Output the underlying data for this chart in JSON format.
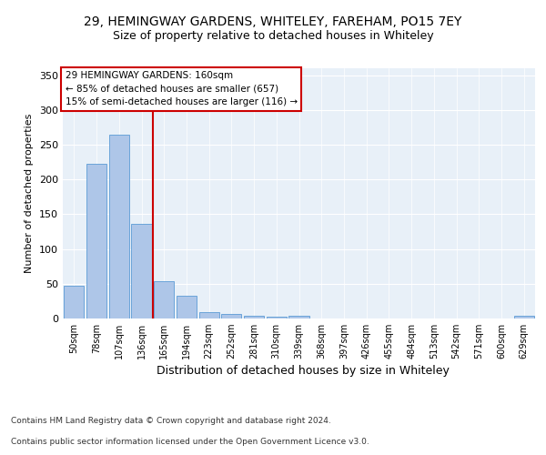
{
  "title1": "29, HEMINGWAY GARDENS, WHITELEY, FAREHAM, PO15 7EY",
  "title2": "Size of property relative to detached houses in Whiteley",
  "xlabel": "Distribution of detached houses by size in Whiteley",
  "ylabel": "Number of detached properties",
  "bar_labels": [
    "50sqm",
    "78sqm",
    "107sqm",
    "136sqm",
    "165sqm",
    "194sqm",
    "223sqm",
    "252sqm",
    "281sqm",
    "310sqm",
    "339sqm",
    "368sqm",
    "397sqm",
    "426sqm",
    "455sqm",
    "484sqm",
    "513sqm",
    "542sqm",
    "571sqm",
    "600sqm",
    "629sqm"
  ],
  "bar_values": [
    47,
    223,
    265,
    136,
    54,
    33,
    9,
    7,
    4,
    3,
    4,
    0,
    0,
    0,
    0,
    0,
    0,
    0,
    0,
    0,
    4
  ],
  "bar_color": "#aec6e8",
  "bar_edgecolor": "#5b9bd5",
  "vline_color": "#cc0000",
  "annotation_text": "29 HEMINGWAY GARDENS: 160sqm\n← 85% of detached houses are smaller (657)\n15% of semi-detached houses are larger (116) →",
  "annotation_box_color": "#ffffff",
  "annotation_box_edgecolor": "#cc0000",
  "ylim": [
    0,
    360
  ],
  "yticks": [
    0,
    50,
    100,
    150,
    200,
    250,
    300,
    350
  ],
  "background_color": "#e8f0f8",
  "grid_color": "#ffffff",
  "footer_line1": "Contains HM Land Registry data © Crown copyright and database right 2024.",
  "footer_line2": "Contains public sector information licensed under the Open Government Licence v3.0.",
  "title1_fontsize": 10,
  "title2_fontsize": 9,
  "ylabel_fontsize": 8,
  "xlabel_fontsize": 9,
  "tick_fontsize": 7,
  "annotation_fontsize": 7.5,
  "footer_fontsize": 6.5
}
